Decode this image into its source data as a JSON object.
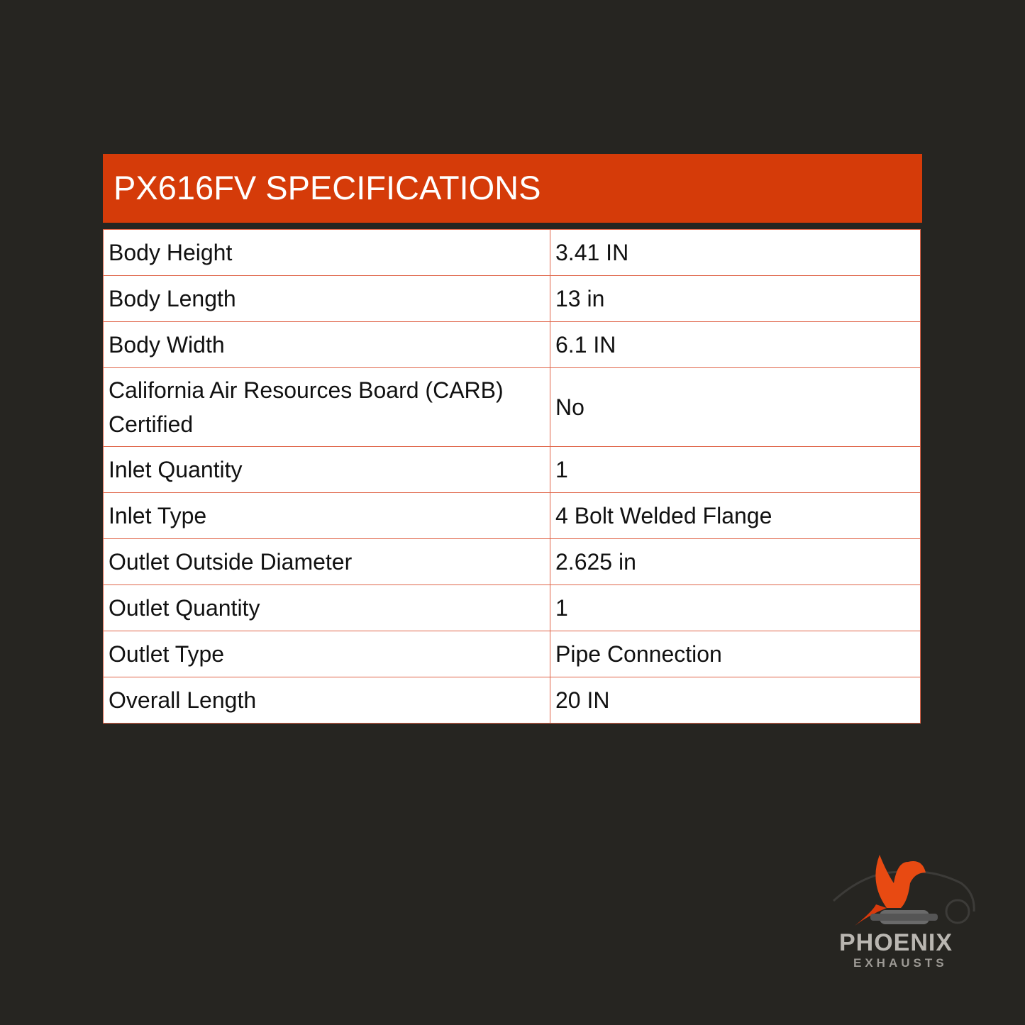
{
  "title": "PX616FV SPECIFICATIONS",
  "specs": [
    {
      "label": "Body Height",
      "value": "3.41 IN"
    },
    {
      "label": "Body Length",
      "value": "13 in"
    },
    {
      "label": "Body Width",
      "value": "6.1 IN"
    },
    {
      "label": "California Air Resources Board (CARB) Certified",
      "value": "No"
    },
    {
      "label": "Inlet Quantity",
      "value": "1"
    },
    {
      "label": "Inlet Type",
      "value": "4 Bolt Welded Flange"
    },
    {
      "label": "Outlet Outside Diameter",
      "value": "2.625 in"
    },
    {
      "label": "Outlet Quantity",
      "value": "1"
    },
    {
      "label": "Outlet Type",
      "value": "Pipe Connection"
    },
    {
      "label": "Overall Length",
      "value": "20 IN"
    }
  ],
  "logo": {
    "name": "PHOENIX",
    "tagline": "EXHAUSTS"
  },
  "colors": {
    "background": "#262521",
    "accent": "#d53b09",
    "border": "#e0664a"
  }
}
